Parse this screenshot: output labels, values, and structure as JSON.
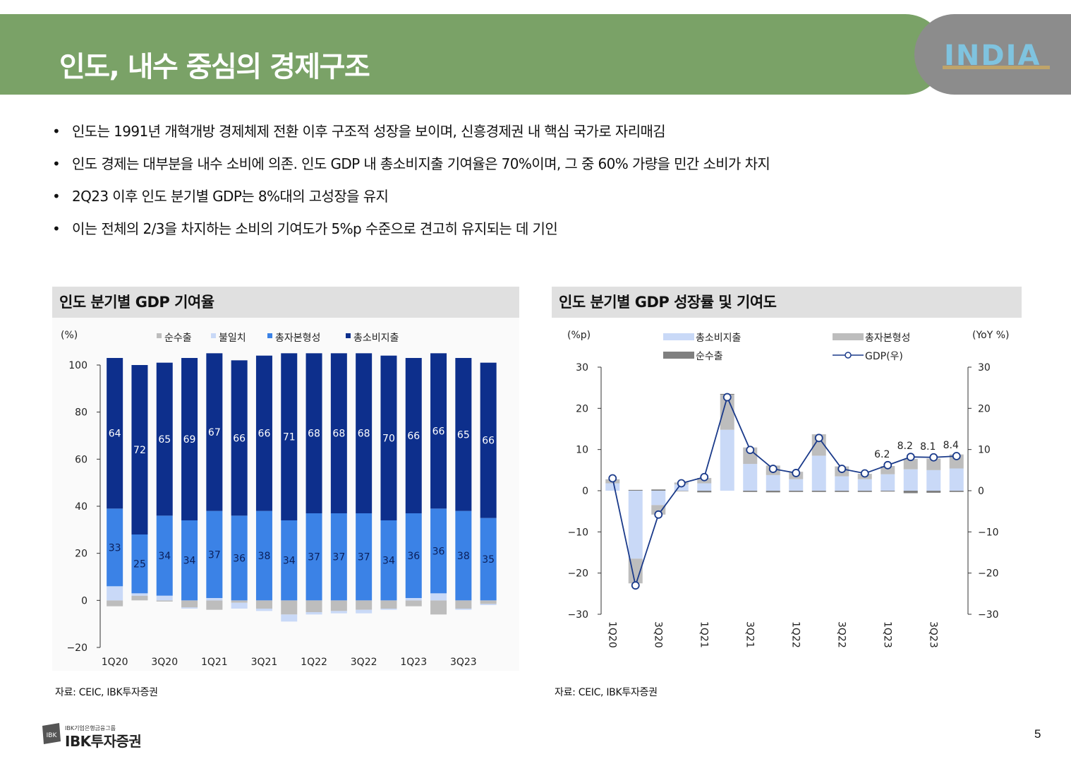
{
  "slide": {
    "title": "인도, 내수 중심의 경제구조",
    "badge_text": "INDIA",
    "bullets": [
      "인도는 1991년 개혁개방 경제체제 전환 이후 구조적 성장을 보이며, 신흥경제권 내 핵심 국가로 자리매김",
      "인도 경제는 대부분을 내수 소비에 의존. 인도 GDP 내 총소비지출 기여율은 70%이며, 그 중 60% 가량을 민간 소비가 차지",
      "2Q23 이후 인도 분기별 GDP는 8%대의 고성장을 유지",
      "이는 전체의 2/3을 차지하는 소비의 기여도가 5%p 수준으로 견고히 유지되는 데 기인"
    ],
    "bullet_symbol": "•",
    "page_number": "5",
    "logo_small": "IBK기업은행금융그룹",
    "logo_main": "IBK투자증권",
    "logo_mark": "IBK"
  },
  "chart_data": [
    {
      "type": "bar",
      "stacked": true,
      "title": "인도 분기별 GDP 기여율",
      "unit_label": "(%)",
      "source": "자료: CEIC, IBK투자증권",
      "ylim": [
        -20,
        100
      ],
      "yticks": [
        "−20",
        "0",
        "20",
        "40",
        "60",
        "80",
        "100"
      ],
      "xtick_labels": [
        "1Q20",
        "3Q20",
        "1Q21",
        "3Q21",
        "1Q22",
        "3Q22",
        "1Q23",
        "3Q23"
      ],
      "categories": [
        "1Q20",
        "2Q20",
        "3Q20",
        "4Q20",
        "1Q21",
        "2Q21",
        "3Q21",
        "4Q21",
        "1Q22",
        "2Q22",
        "3Q22",
        "4Q22",
        "1Q23",
        "2Q23",
        "3Q23",
        "4Q23"
      ],
      "series": [
        {
          "name": "순수출",
          "color": "#bdbdbd",
          "values": [
            -2.5,
            2,
            -0.5,
            -3,
            -4,
            -1,
            -3.5,
            -6,
            -5,
            -4.5,
            -4,
            -3.5,
            -2.5,
            -6,
            -3.5,
            -1.5
          ]
        },
        {
          "name": "불일치",
          "color": "#c9d9f7",
          "values": [
            6,
            1,
            2,
            -0.5,
            1,
            -2.5,
            -1,
            -3,
            -1,
            -1,
            -1.5,
            -0.5,
            1,
            3,
            -0.5,
            -0.5
          ]
        },
        {
          "name": "총자본형성",
          "color": "#3b82e6",
          "values": [
            33,
            25,
            34,
            34,
            37,
            36,
            38,
            34,
            37,
            37,
            37,
            34,
            36,
            36,
            38,
            35
          ]
        },
        {
          "name": "총소비지출",
          "color": "#0d2f8c",
          "values": [
            64,
            72,
            65,
            69,
            67,
            66,
            66,
            71,
            68,
            68,
            68,
            70,
            66,
            66,
            65,
            66
          ]
        }
      ],
      "labels_consumption": [
        "64",
        "72",
        "65",
        "69",
        "67",
        "66",
        "66",
        "71",
        "68",
        "68",
        "68",
        "70",
        "66",
        "66",
        "65",
        "66"
      ],
      "labels_capital": [
        "33",
        "25",
        "34",
        "34",
        "37",
        "36",
        "38",
        "34",
        "37",
        "37",
        "37",
        "34",
        "36",
        "36",
        "38",
        "35"
      ]
    },
    {
      "type": "bar+line",
      "stacked": true,
      "title": "인도 분기별 GDP 성장률 및 기여도",
      "left_unit": "(%p)",
      "right_unit": "(YoY %)",
      "source": "자료: CEIC, IBK투자증권",
      "ylim": [
        -30,
        30
      ],
      "yticks": [
        "−30",
        "−20",
        "−10",
        "0",
        "10",
        "20",
        "30"
      ],
      "xtick_labels": [
        "1Q20",
        "3Q20",
        "1Q21",
        "3Q21",
        "1Q22",
        "3Q22",
        "1Q23",
        "3Q23"
      ],
      "categories": [
        "1Q20",
        "2Q20",
        "3Q20",
        "4Q20",
        "1Q21",
        "2Q21",
        "3Q21",
        "4Q21",
        "1Q22",
        "2Q22",
        "3Q22",
        "4Q22",
        "1Q23",
        "2Q23",
        "3Q23",
        "4Q23"
      ],
      "series": [
        {
          "name": "총소비지출",
          "color": "#c9d9f7",
          "values": [
            1.8,
            -16.5,
            -3.5,
            1.5,
            1.8,
            14.8,
            6.5,
            3.8,
            2.8,
            8.5,
            3.5,
            2.8,
            4.0,
            5.2,
            5.0,
            5.4
          ]
        },
        {
          "name": "총자본형성",
          "color": "#bdbdbd",
          "values": [
            0.8,
            -6.0,
            -2.3,
            0.5,
            1.3,
            8.5,
            4.0,
            2.3,
            1.8,
            5.2,
            2.4,
            1.3,
            2.0,
            2.5,
            2.8,
            3.4
          ]
        },
        {
          "name": "순수출",
          "color": "#7f7f7f",
          "values": [
            0.1,
            0.2,
            0.3,
            -0.1,
            -0.4,
            0.2,
            -0.3,
            -0.4,
            -0.3,
            -0.3,
            -0.3,
            -0.3,
            -0.2,
            -0.6,
            -0.5,
            -0.3
          ]
        },
        {
          "name": "GDP(우)",
          "color": "#1a3a8a",
          "type": "line",
          "values": [
            3.0,
            -23.0,
            -5.8,
            1.8,
            3.3,
            22.7,
            9.9,
            5.3,
            4.3,
            12.8,
            5.3,
            4.2,
            6.2,
            8.2,
            8.1,
            8.4
          ]
        }
      ],
      "gdp_labels": {
        "12": "6.2",
        "13": "8.2",
        "14": "8.1",
        "15": "8.4"
      }
    }
  ]
}
